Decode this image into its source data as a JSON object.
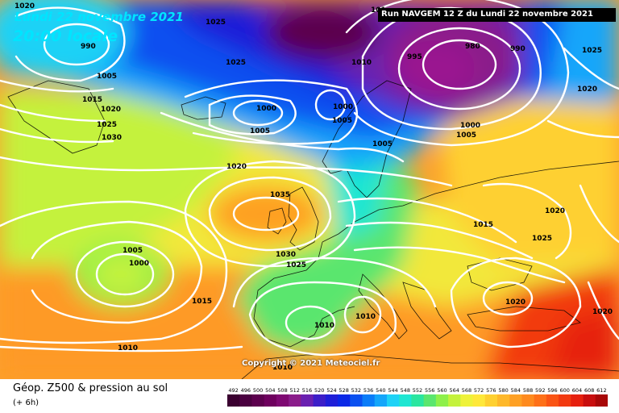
{
  "header": {
    "date_label": "Lundi 22 novembre 2021",
    "time_label": "20:00 locale",
    "run_label": "Run NAVGEM 12 Z du Lundi 22 novembre 2021"
  },
  "footer": {
    "copyright": "Copyright © 2021 Meteociel.fr",
    "legend_title": "Géop. Z500 & pression au sol",
    "legend_sub": "(+ 6h)"
  },
  "pressure_labels": [
    {
      "text": "1020"
    },
    {
      "text": "990"
    },
    {
      "text": "1025"
    },
    {
      "text": "101"
    },
    {
      "text": "995"
    },
    {
      "text": "980"
    },
    {
      "text": "990"
    },
    {
      "text": "1025"
    },
    {
      "text": "1025"
    },
    {
      "text": "1010"
    },
    {
      "text": "1005"
    },
    {
      "text": "1020"
    },
    {
      "text": "1015"
    },
    {
      "text": "1020"
    },
    {
      "text": "1025"
    },
    {
      "text": "1030"
    },
    {
      "text": "1000"
    },
    {
      "text": "1000"
    },
    {
      "text": "1005"
    },
    {
      "text": "1005"
    },
    {
      "text": "1005"
    },
    {
      "text": "1000"
    },
    {
      "text": "1005"
    },
    {
      "text": "1020"
    },
    {
      "text": "1035"
    },
    {
      "text": "1015"
    },
    {
      "text": "1020"
    },
    {
      "text": "1025"
    },
    {
      "text": "1005"
    },
    {
      "text": "1000"
    },
    {
      "text": "1030"
    },
    {
      "text": "1025"
    },
    {
      "text": "1015"
    },
    {
      "text": "1020"
    },
    {
      "text": "1010"
    },
    {
      "text": "1010"
    },
    {
      "text": "1010"
    },
    {
      "text": "1020"
    },
    {
      "text": "1010"
    }
  ],
  "scale": {
    "values": [
      "492",
      "496",
      "500",
      "504",
      "508",
      "512",
      "516",
      "520",
      "524",
      "528",
      "532",
      "536",
      "540",
      "544",
      "548",
      "552",
      "556",
      "560",
      "564",
      "568",
      "572",
      "576",
      "580",
      "584",
      "588",
      "592",
      "596",
      "600",
      "604",
      "608",
      "612"
    ],
    "colors": [
      "#3a0030",
      "#4a0040",
      "#5c004e",
      "#6e005e",
      "#7e0872",
      "#8a1c8a",
      "#6a20b0",
      "#3c1ec8",
      "#1e1ed8",
      "#0a28e6",
      "#0a50f0",
      "#0a7cf8",
      "#14a6fa",
      "#1ed2f6",
      "#1ee6d2",
      "#2ae6a0",
      "#5ae66e",
      "#8ef04a",
      "#c4f23c",
      "#eef23a",
      "#fee83a",
      "#fed030",
      "#feb82a",
      "#fea024",
      "#fe8a1e",
      "#fe7018",
      "#fa5414",
      "#f23a10",
      "#e6200e",
      "#c80e0e",
      "#a80808"
    ]
  },
  "colors": {
    "accent_text": "#00e5ff",
    "isobar": "#ffffff"
  }
}
